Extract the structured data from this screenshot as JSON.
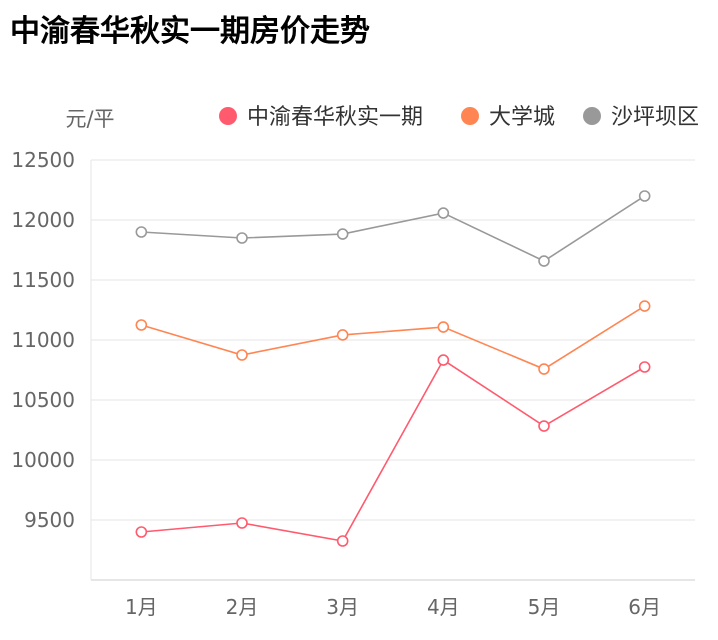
{
  "chart_data": {
    "type": "line",
    "title": "中渝春华秋实一期房价走势",
    "ylabel": "元/平",
    "xlabel": "",
    "categories": [
      "1月",
      "2月",
      "3月",
      "4月",
      "5月",
      "6月"
    ],
    "ylim": [
      9000,
      12500
    ],
    "yticks": [
      9500,
      10000,
      10500,
      11000,
      11500,
      12000,
      12500
    ],
    "grid": true,
    "legend": "top-right",
    "series": [
      {
        "name": "中渝春华秋实一期",
        "color": "#ff5a6e",
        "values": [
          9400,
          9475,
          9325,
          10833,
          10283,
          10775
        ]
      },
      {
        "name": "大学城",
        "color": "#ff8552",
        "values": [
          11125,
          10875,
          11042,
          11108,
          10758,
          11283
        ]
      },
      {
        "name": "沙坪坝区",
        "color": "#999999",
        "values": [
          11900,
          11850,
          11883,
          12058,
          11658,
          12200
        ]
      }
    ]
  }
}
